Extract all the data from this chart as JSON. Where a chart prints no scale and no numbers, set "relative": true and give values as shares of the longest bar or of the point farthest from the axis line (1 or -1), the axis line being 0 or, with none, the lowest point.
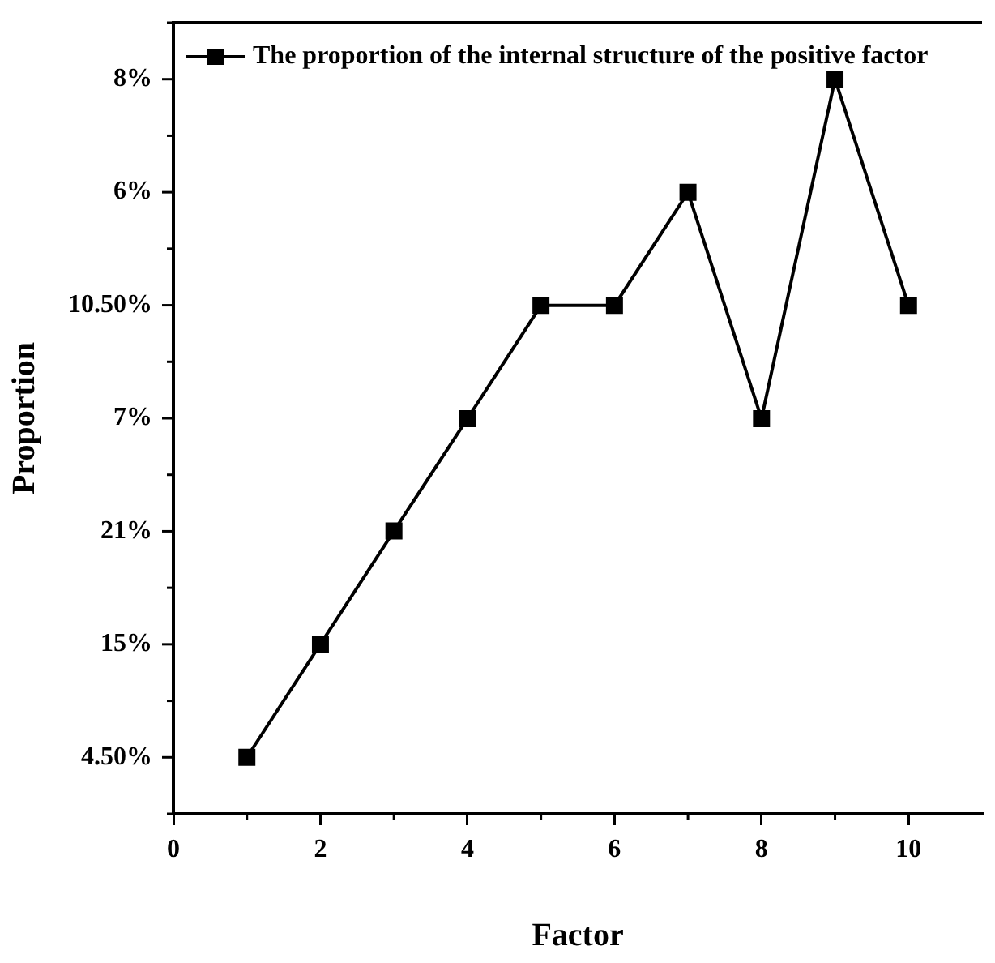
{
  "chart_data": {
    "type": "line",
    "xlabel": "Factor",
    "ylabel": "Proportion",
    "x": [
      1,
      2,
      3,
      4,
      5,
      6,
      7,
      8,
      9,
      10
    ],
    "series": [
      {
        "name": "The proportion of the internal structure of the positive factor",
        "color": "#000000",
        "values": [
          0.077,
          0.231,
          0.385,
          0.538,
          0.692,
          0.692,
          0.846,
          0.538,
          1,
          0.692
        ]
      }
    ],
    "relative": true,
    "annotations": [
      "4.50%",
      "15%",
      "21%",
      "7%",
      "10.50%",
      "6%",
      "8%"
    ],
    "xlim": [
      0,
      11
    ],
    "xticks": [
      0,
      2,
      4,
      6,
      8,
      10
    ],
    "grid": false,
    "legend": "top left",
    "marker": "square",
    "line_style": "solid"
  }
}
